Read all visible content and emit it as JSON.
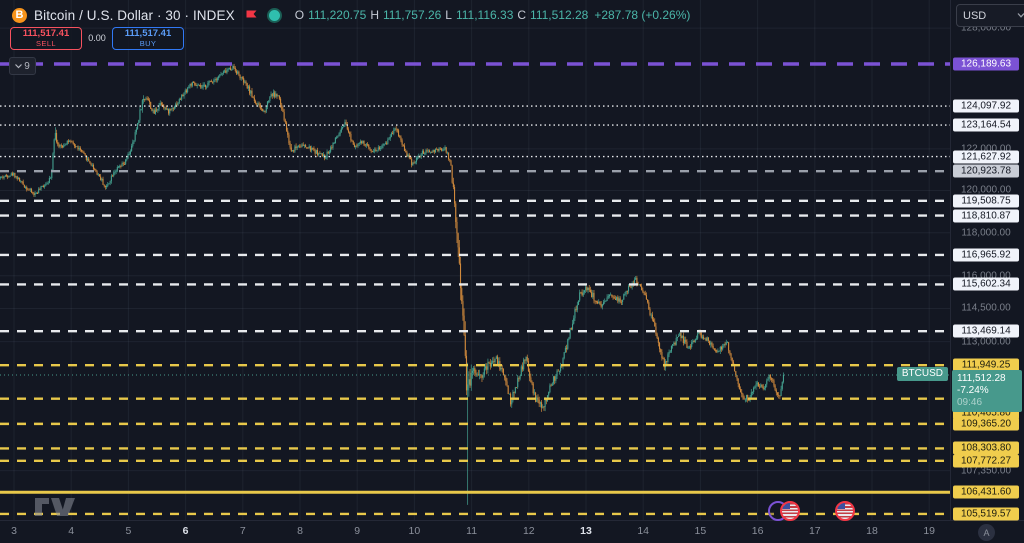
{
  "header": {
    "symbol_title": "Bitcoin / U.S. Dollar · 30 · INDEX",
    "coin_glyph": "B",
    "ohlc": {
      "open_label": "O",
      "open": "111,220.75",
      "high_label": "H",
      "high": "111,757.26",
      "low_label": "L",
      "low": "111,116.33",
      "close_label": "C",
      "close": "111,512.28",
      "change": "+287.78 (+0.26%)"
    },
    "trade": {
      "sell_price": "111,517.41",
      "sell_label": "SELL",
      "spread": "0.00",
      "buy_price": "111,517.41",
      "buy_label": "BUY"
    },
    "objects_count": "9",
    "currency": "USD"
  },
  "corner_button_label": "A",
  "colors": {
    "background": "#131722",
    "up_candle": "#43a08f",
    "down_candle": "#d18a3c",
    "purple": "#7b52d4",
    "white_line": "#e8eaed",
    "gray_line": "#9aa0ab",
    "yellow_line": "#e8c84a",
    "current_teal": "#47998c",
    "grid": "rgba(163,176,210,0.08)"
  },
  "chart_data": {
    "type": "candlestick",
    "symbol": "BTCUSD",
    "interval_minutes": 30,
    "scale": "log",
    "time_axis": {
      "days": [
        3,
        4,
        5,
        6,
        7,
        8,
        9,
        10,
        11,
        12,
        13,
        14,
        15,
        16,
        17,
        18,
        19
      ],
      "bold_days": [
        6,
        13
      ]
    },
    "plain_price_labels": [
      128000,
      122000,
      120000,
      118000,
      116000,
      114500,
      113000,
      107350
    ],
    "levels": [
      {
        "price": 126189.63,
        "style": "dash-lg",
        "color": "purple",
        "badge": "purple"
      },
      {
        "price": 124097.92,
        "style": "dot",
        "color": "white",
        "badge": "white"
      },
      {
        "price": 123164.54,
        "style": "dot",
        "color": "white",
        "badge": "white"
      },
      {
        "price": 121627.92,
        "style": "dot",
        "color": "white",
        "badge": "white"
      },
      {
        "price": 120923.78,
        "style": "dash",
        "color": "gray",
        "badge": "gray"
      },
      {
        "price": 119508.75,
        "style": "dash",
        "color": "white",
        "badge": "white"
      },
      {
        "price": 118810.87,
        "style": "dash",
        "color": "white",
        "badge": "white"
      },
      {
        "price": 116965.92,
        "style": "dash",
        "color": "white",
        "badge": "white"
      },
      {
        "price": 115602.34,
        "style": "dash",
        "color": "white",
        "badge": "white"
      },
      {
        "price": 113469.14,
        "style": "dash",
        "color": "white",
        "badge": "white"
      },
      {
        "price": 111949.25,
        "style": "dash",
        "color": "yellow",
        "badge": "yellow"
      },
      {
        "price": 110465.8,
        "style": "dash",
        "color": "yellow",
        "badge": "yellow",
        "badge_dy": 14
      },
      {
        "price": 109365.2,
        "style": "dash",
        "color": "yellow",
        "badge": "yellow"
      },
      {
        "price": 108303.8,
        "style": "dash",
        "color": "yellow",
        "badge": "yellow"
      },
      {
        "price": 107772.27,
        "style": "dash",
        "color": "yellow",
        "badge": "yellow"
      },
      {
        "price": 106431.6,
        "style": "solid",
        "color": "yellow",
        "badge": "yellow",
        "width": 3
      },
      {
        "price": 105519.57,
        "style": "dash",
        "color": "yellow",
        "badge": "yellow"
      }
    ],
    "current_price": {
      "value": 111512.28,
      "display": "111,512.28",
      "change_pct": "-7.24%",
      "countdown": "09:46",
      "ticker": "BTCUSD"
    },
    "price_path": [
      [
        2.755,
        120600,
        200
      ],
      [
        3.0,
        120800,
        200
      ],
      [
        3.2,
        120200,
        200
      ],
      [
        3.37,
        119800,
        220
      ],
      [
        3.55,
        120300,
        200
      ],
      [
        3.66,
        120600,
        250
      ],
      [
        3.72,
        122900,
        600
      ],
      [
        3.8,
        122000,
        350
      ],
      [
        3.95,
        122400,
        220
      ],
      [
        4.15,
        122000,
        200
      ],
      [
        4.35,
        121300,
        220
      ],
      [
        4.5,
        120700,
        260
      ],
      [
        4.62,
        120100,
        260
      ],
      [
        4.75,
        120900,
        240
      ],
      [
        4.95,
        121300,
        240
      ],
      [
        5.1,
        122300,
        320
      ],
      [
        5.25,
        124300,
        420
      ],
      [
        5.33,
        124600,
        300
      ],
      [
        5.45,
        123700,
        300
      ],
      [
        5.58,
        124300,
        280
      ],
      [
        5.7,
        123800,
        260
      ],
      [
        5.88,
        124300,
        260
      ],
      [
        6.1,
        125200,
        280
      ],
      [
        6.3,
        125000,
        260
      ],
      [
        6.55,
        125500,
        260
      ],
      [
        6.75,
        125900,
        260
      ],
      [
        6.85,
        126050,
        260
      ],
      [
        6.95,
        125600,
        260
      ],
      [
        7.1,
        125000,
        280
      ],
      [
        7.25,
        124200,
        300
      ],
      [
        7.38,
        123800,
        300
      ],
      [
        7.5,
        124700,
        320
      ],
      [
        7.63,
        124600,
        280
      ],
      [
        7.75,
        123300,
        340
      ],
      [
        7.85,
        121900,
        340
      ],
      [
        8.0,
        122200,
        260
      ],
      [
        8.2,
        122000,
        240
      ],
      [
        8.45,
        121600,
        240
      ],
      [
        8.62,
        122400,
        260
      ],
      [
        8.8,
        123200,
        280
      ],
      [
        8.95,
        122200,
        280
      ],
      [
        9.1,
        122300,
        240
      ],
      [
        9.3,
        121900,
        240
      ],
      [
        9.5,
        122200,
        240
      ],
      [
        9.68,
        123100,
        280
      ],
      [
        9.85,
        121900,
        280
      ],
      [
        9.97,
        121300,
        260
      ],
      [
        10.15,
        121800,
        220
      ],
      [
        10.35,
        121900,
        200
      ],
      [
        10.55,
        122000,
        220
      ],
      [
        10.64,
        121400,
        300
      ],
      [
        10.72,
        119200,
        900
      ],
      [
        10.79,
        116800,
        1100
      ],
      [
        10.85,
        114600,
        1400
      ],
      [
        10.9,
        112400,
        1800
      ],
      [
        10.93,
        111300,
        2200
      ],
      [
        10.96,
        111100,
        1000
      ],
      [
        11.05,
        111800,
        600
      ],
      [
        11.18,
        111500,
        450
      ],
      [
        11.32,
        112000,
        400
      ],
      [
        11.45,
        112200,
        380
      ],
      [
        11.58,
        111500,
        380
      ],
      [
        11.7,
        110300,
        420
      ],
      [
        11.83,
        111400,
        380
      ],
      [
        11.96,
        112300,
        340
      ],
      [
        12.1,
        110600,
        400
      ],
      [
        12.26,
        110000,
        380
      ],
      [
        12.42,
        111200,
        340
      ],
      [
        12.58,
        111900,
        320
      ],
      [
        12.72,
        113300,
        360
      ],
      [
        12.88,
        115000,
        360
      ],
      [
        13.02,
        115500,
        320
      ],
      [
        13.15,
        115000,
        300
      ],
      [
        13.28,
        114500,
        300
      ],
      [
        13.45,
        115200,
        300
      ],
      [
        13.6,
        114800,
        300
      ],
      [
        13.76,
        115400,
        300
      ],
      [
        13.88,
        115800,
        300
      ],
      [
        14.02,
        115300,
        300
      ],
      [
        14.18,
        113900,
        340
      ],
      [
        14.38,
        111900,
        360
      ],
      [
        14.52,
        112800,
        320
      ],
      [
        14.66,
        113300,
        300
      ],
      [
        14.8,
        112700,
        300
      ],
      [
        14.97,
        113350,
        280
      ],
      [
        15.12,
        113100,
        280
      ],
      [
        15.3,
        112600,
        280
      ],
      [
        15.48,
        112900,
        260
      ],
      [
        15.62,
        111600,
        300
      ],
      [
        15.75,
        110500,
        320
      ],
      [
        15.88,
        110500,
        300
      ],
      [
        16.0,
        111200,
        280
      ],
      [
        16.1,
        110900,
        260
      ],
      [
        16.22,
        111500,
        260
      ],
      [
        16.32,
        110900,
        260
      ],
      [
        16.4,
        110600,
        280
      ],
      [
        16.46,
        111512.28,
        240
      ]
    ],
    "crash_wick": {
      "d": 10.93,
      "low": 105900
    },
    "events": [
      {
        "d": 16.36,
        "kind": "ring"
      },
      {
        "d": 16.57,
        "kind": "us-flag"
      },
      {
        "d": 17.52,
        "kind": "us-flag"
      }
    ]
  }
}
